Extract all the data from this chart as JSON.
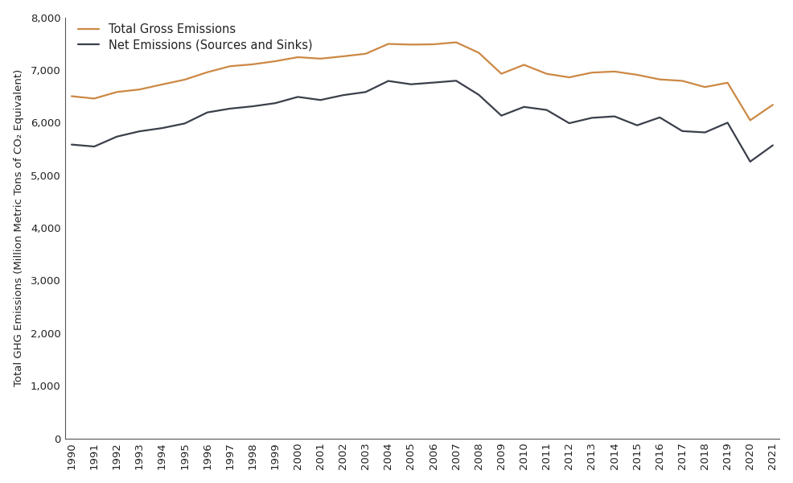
{
  "years": [
    1990,
    1991,
    1992,
    1993,
    1994,
    1995,
    1996,
    1997,
    1998,
    1999,
    2000,
    2001,
    2002,
    2003,
    2004,
    2005,
    2006,
    2007,
    2008,
    2009,
    2010,
    2011,
    2012,
    2013,
    2014,
    2015,
    2016,
    2017,
    2018,
    2019,
    2020,
    2021
  ],
  "gross_emissions": [
    6503,
    6459,
    6583,
    6631,
    6726,
    6818,
    6959,
    7073,
    7109,
    7168,
    7245,
    7217,
    7261,
    7310,
    7497,
    7484,
    7490,
    7527,
    7329,
    6930,
    7100,
    6929,
    6862,
    6952,
    6972,
    6910,
    6822,
    6795,
    6677,
    6759,
    6046,
    6340
  ],
  "net_emissions": [
    5584,
    5547,
    5735,
    5836,
    5897,
    5985,
    6195,
    6267,
    6311,
    6371,
    6490,
    6431,
    6523,
    6583,
    6793,
    6730,
    6762,
    6797,
    6530,
    6134,
    6300,
    6242,
    5990,
    6092,
    6120,
    5950,
    6100,
    5840,
    5815,
    6000,
    5260,
    5570
  ],
  "gross_color": "#cc8844",
  "net_color": "#3a3f4a",
  "ylabel": "Total GHG Emissions (Million Metric Tons of CO₂ Equivalent)",
  "legend_gross": "Total Gross Emissions",
  "legend_net": "Net Emissions (Sources and Sinks)",
  "ylim": [
    0,
    8000
  ],
  "yticks": [
    0,
    1000,
    2000,
    3000,
    4000,
    5000,
    6000,
    7000,
    8000
  ],
  "background_color": "#ffffff",
  "linewidth": 1.6
}
